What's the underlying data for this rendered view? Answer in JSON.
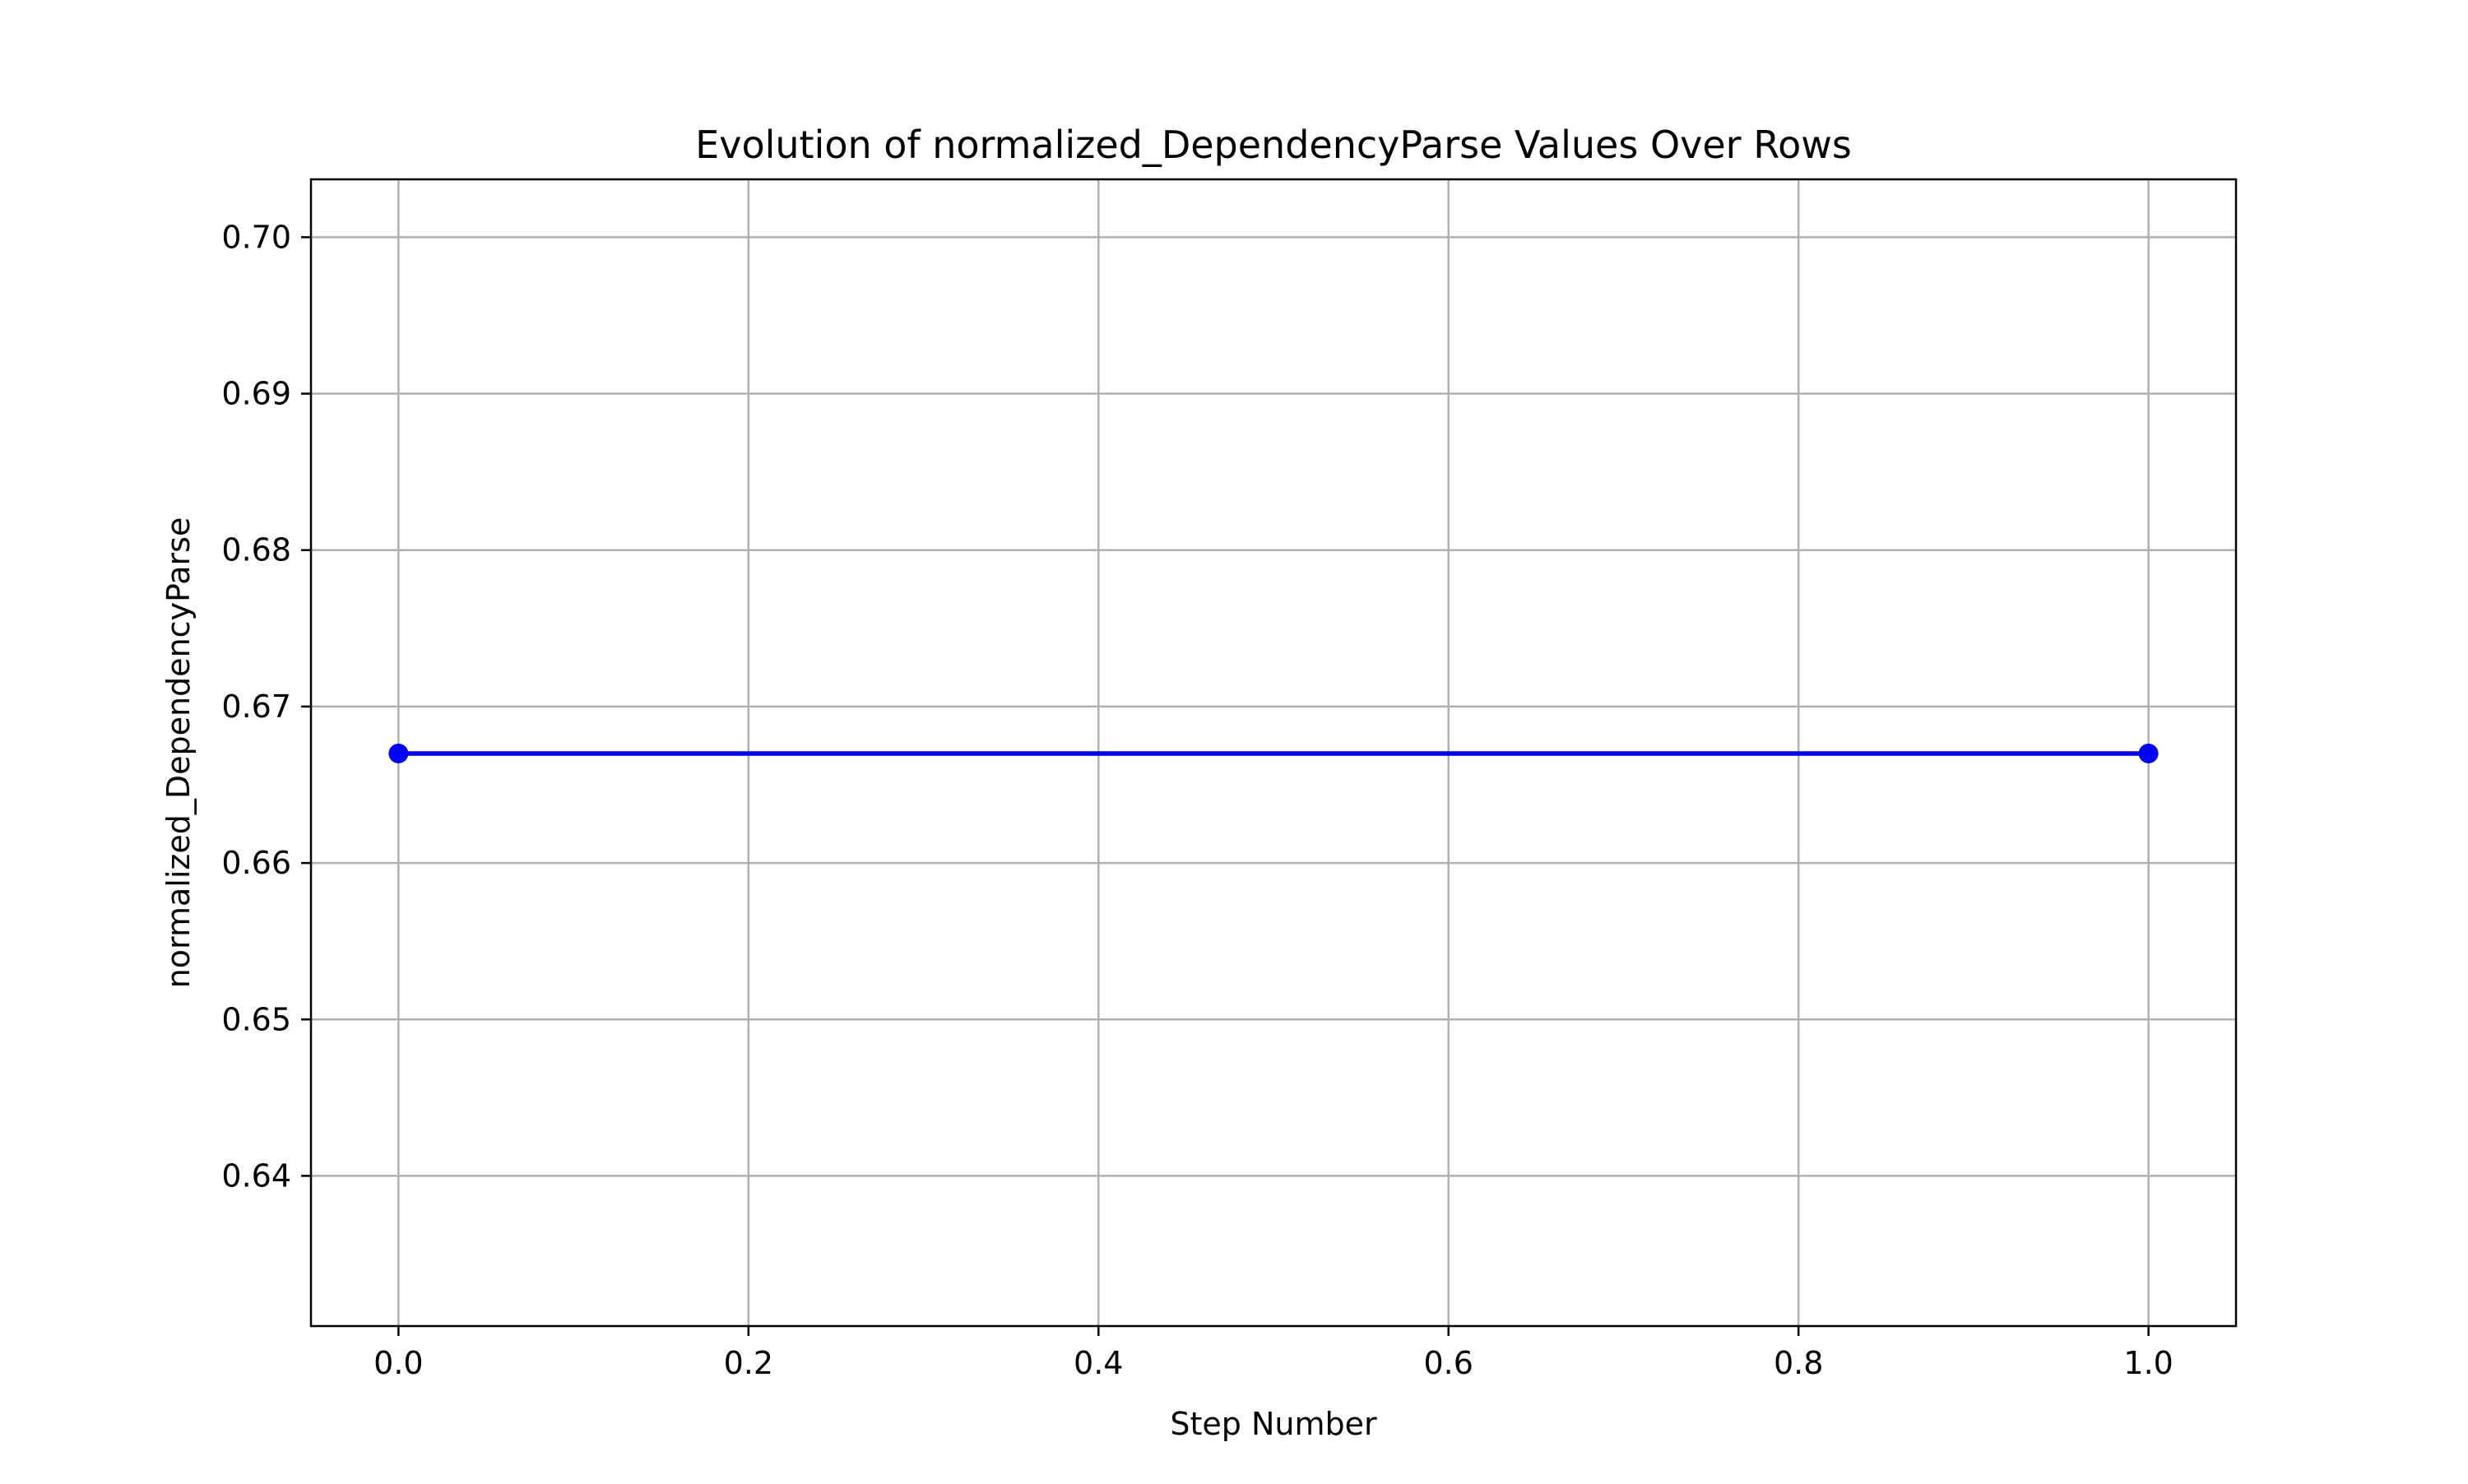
{
  "chart_data": {
    "type": "line",
    "title": "Evolution of normalized_DependencyParse Values Over Rows",
    "xlabel": "Step Number",
    "ylabel": "normalized_DependencyParse",
    "xlim": [
      -0.05,
      1.05
    ],
    "ylim": [
      0.6304,
      0.7037
    ],
    "xticks": [
      0.0,
      0.2,
      0.4,
      0.6,
      0.8,
      1.0
    ],
    "xtick_labels": [
      "0.0",
      "0.2",
      "0.4",
      "0.6",
      "0.8",
      "1.0"
    ],
    "yticks": [
      0.64,
      0.65,
      0.66,
      0.67,
      0.68,
      0.69,
      0.7
    ],
    "ytick_labels": [
      "0.64",
      "0.65",
      "0.66",
      "0.67",
      "0.68",
      "0.69",
      "0.70"
    ],
    "grid": true,
    "legend": "none",
    "series": [
      {
        "x": [
          0,
          1
        ],
        "y": [
          0.667,
          0.667
        ],
        "color": "#0000ff",
        "marker": "circle"
      }
    ],
    "colors": {
      "line": "#0000ff",
      "grid": "#b0b0b0",
      "axes": "#000000"
    }
  }
}
